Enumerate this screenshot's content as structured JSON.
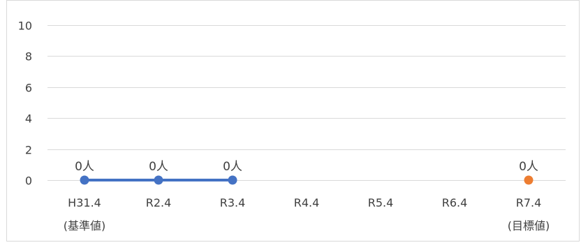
{
  "chart_data": {
    "type": "line",
    "categories": [
      "H31.4",
      "R2.4",
      "R3.4",
      "R4.4",
      "R5.4",
      "R6.4",
      "R7.4"
    ],
    "category_sublabels": [
      "(基準値)",
      "",
      "",
      "",
      "",
      "",
      "(目標値)"
    ],
    "series": [
      {
        "values": [
          0,
          0,
          0,
          null,
          null,
          null,
          null
        ],
        "data_labels": [
          "0人",
          "0人",
          "0人",
          null,
          null,
          null,
          null
        ],
        "color": "#4472c4",
        "line": true
      },
      {
        "values": [
          null,
          null,
          null,
          null,
          null,
          null,
          0
        ],
        "data_labels": [
          null,
          null,
          null,
          null,
          null,
          null,
          "0人"
        ],
        "color": "#ed7d31",
        "line": false
      }
    ],
    "ylim": [
      0,
      10
    ],
    "yticks": [
      0,
      2,
      4,
      6,
      8,
      10
    ],
    "grid": true,
    "legend": "none"
  },
  "colors": {
    "gridline": "#d9d9d9",
    "border": "#d9d9d9",
    "text": "#404040"
  }
}
